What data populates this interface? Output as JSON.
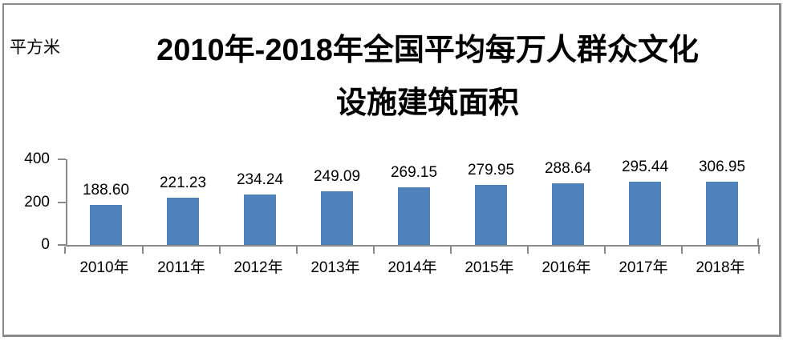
{
  "header": {
    "unit_label": "平方米",
    "title_line1": "2010年-2018年全国平均每万人群众文化",
    "title_line2": "设施建筑面积"
  },
  "chart_data": {
    "type": "bar",
    "title": "2010年-2018年全国平均每万人群众文化设施建筑面积",
    "unit": "平方米",
    "categories": [
      "2010年",
      "2011年",
      "2012年",
      "2013年",
      "2014年",
      "2015年",
      "2016年",
      "2017年",
      "2018年"
    ],
    "values": [
      188.6,
      221.23,
      234.24,
      249.09,
      269.15,
      279.95,
      288.64,
      295.44,
      306.95
    ],
    "value_labels": [
      "188.60",
      "221.23",
      "234.24",
      "249.09",
      "269.15",
      "279.95",
      "288.64",
      "295.44",
      "306.95"
    ],
    "ylabel": "平方米",
    "xlabel": "",
    "yticks": [
      0,
      200,
      400
    ],
    "ylim": [
      0,
      400
    ],
    "grid": false,
    "legend": "none",
    "bar_color": "#4F81BD",
    "axis_color": "#8a8a8a"
  }
}
